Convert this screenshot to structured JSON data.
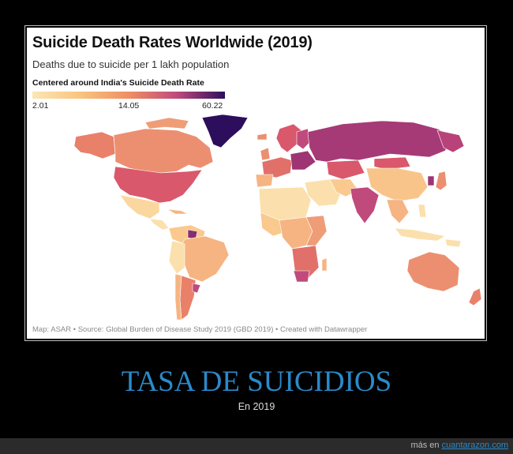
{
  "map": {
    "title": "Suicide Death Rates Worldwide (2019)",
    "subtitle": "Deaths due to suicide per 1 lakh population",
    "legend_title": "Centered around India's Suicide Death Rate",
    "legend_ticks": [
      "2.01",
      "14.05",
      "60.22"
    ],
    "legend_colors": [
      "#fbe6b6",
      "#f9c47e",
      "#f08e63",
      "#c04a7c",
      "#2c0e5c"
    ],
    "source": "Map: ASAR • Source: Global Burden of Disease Study 2019 (GBD 2019) • Created with Datawrapper"
  },
  "caption": {
    "title": "TASA DE SUICIDIOS",
    "subtitle": "En 2019"
  },
  "footer": {
    "prefix": "más en",
    "site": "cuantarazon.com"
  }
}
